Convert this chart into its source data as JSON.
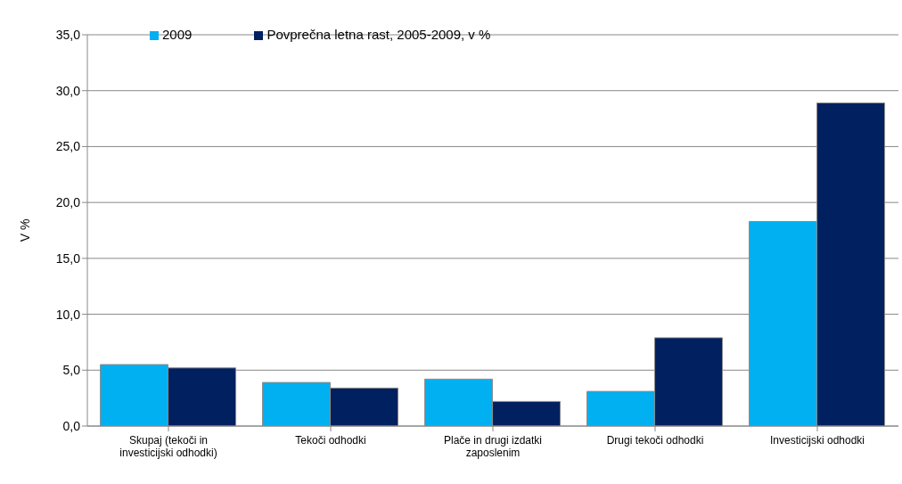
{
  "chart_data": {
    "type": "bar",
    "ylabel": "V %",
    "categories": [
      "Skupaj (tekoči in investicijski odhodki)",
      "Tekoči odhodki",
      "Plače in drugi izdatki zaposlenim",
      "Drugi tekoči odhodki",
      "Investicijski odhodki"
    ],
    "series": [
      {
        "name": "2009",
        "color": "#00b0f0",
        "values": [
          5.5,
          3.9,
          4.2,
          3.1,
          18.3
        ]
      },
      {
        "name": "Povprečna letna rast,  2005-2009, v %",
        "color": "#002060",
        "values": [
          5.2,
          3.4,
          2.2,
          7.9,
          28.9
        ]
      }
    ],
    "ylim": [
      0,
      35
    ],
    "yticks": [
      {
        "value": 0,
        "label": "0,0"
      },
      {
        "value": 5,
        "label": "5,0"
      },
      {
        "value": 10,
        "label": "10,0"
      },
      {
        "value": 15,
        "label": "15,0"
      },
      {
        "value": 20,
        "label": "20,0"
      },
      {
        "value": 25,
        "label": "25,0"
      },
      {
        "value": 30,
        "label": "30,0"
      },
      {
        "value": 35,
        "label": "35,0"
      }
    ],
    "grid": "y",
    "legend": "top left"
  }
}
